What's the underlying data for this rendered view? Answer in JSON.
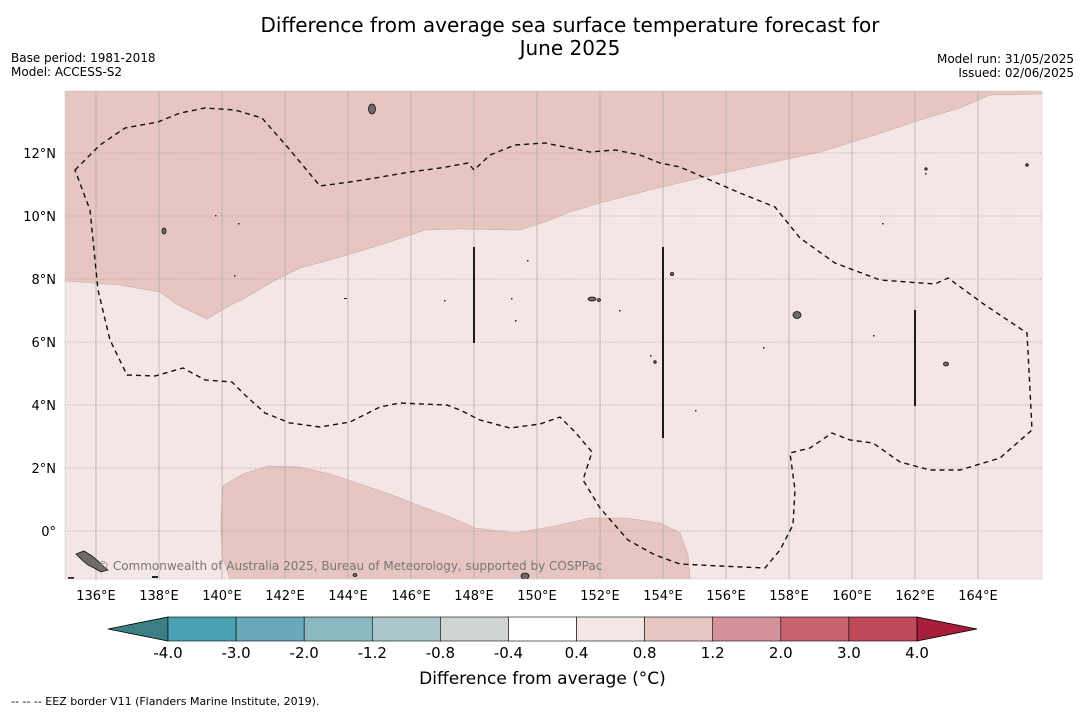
{
  "header": {
    "title_line1": "Difference from average sea surface temperature forecast for",
    "title_line2": "June 2025",
    "base_period": "Base period: 1981-2018",
    "model": "Model: ACCESS-S2",
    "model_run": "Model run: 31/05/2025",
    "issued": "Issued: 02/06/2025"
  },
  "map": {
    "lon_ticks": [
      "136°E",
      "138°E",
      "140°E",
      "142°E",
      "144°E",
      "146°E",
      "148°E",
      "150°E",
      "152°E",
      "154°E",
      "156°E",
      "158°E",
      "160°E",
      "162°E",
      "164°E"
    ],
    "lat_ticks": [
      "12°N",
      "10°N",
      "8°N",
      "6°N",
      "4°N",
      "2°N",
      "0°"
    ],
    "watermark": "© Commonwealth of Australia 2025, Bureau of Meteorology, supported by COSPPac",
    "colors": {
      "anomaly_0_4_to_0_8": "#f4e6e5",
      "anomaly_0_8_to_1_2": "#e7c6c1",
      "land": "#6e6a6a",
      "gridline": "#9e9e9e"
    }
  },
  "colorbar": {
    "ticks": [
      "-4.0",
      "-3.0",
      "-2.0",
      "-1.2",
      "-0.8",
      "-0.4",
      "0.4",
      "0.8",
      "1.2",
      "2.0",
      "3.0",
      "4.0"
    ],
    "colors": [
      "#4aa1b3",
      "#68a9b9",
      "#8bb9c3",
      "#aac8cb",
      "#d0d4d3",
      "#ffffff",
      "#f4e6e5",
      "#e7c6c1",
      "#d4939a",
      "#c8636f",
      "#bf4a5a"
    ],
    "under_color": "#3b7e86",
    "over_color": "#a81d3a",
    "label": "Difference from average (°C)"
  },
  "legend": {
    "eez": "--  --  -- EEZ border V11 (Flanders Marine Institute, 2019)."
  }
}
